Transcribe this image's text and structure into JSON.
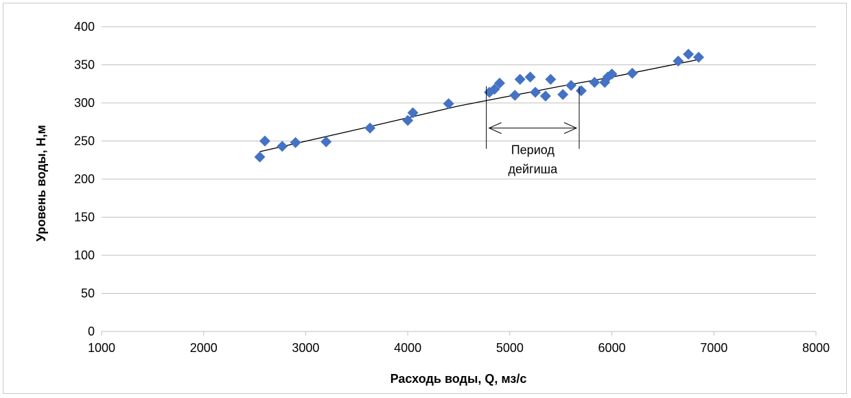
{
  "chart_data": {
    "type": "scatter",
    "title": "",
    "xlabel": "Расходь воды, Q, мз/с",
    "ylabel": "Уровень воды, Н,м",
    "xlim": [
      1000,
      8000
    ],
    "ylim": [
      0,
      400
    ],
    "x_ticks": [
      1000,
      2000,
      3000,
      4000,
      5000,
      6000,
      7000,
      8000
    ],
    "y_ticks": [
      0,
      50,
      100,
      150,
      200,
      250,
      300,
      350,
      400
    ],
    "grid": "horizontal",
    "legend": "none",
    "marker": "diamond",
    "colors": {
      "points": "#4472C4",
      "trendline": "#000000",
      "grid": "#bfbfbf"
    },
    "series": [
      {
        "points": [
          [
            2550,
            229
          ],
          [
            2600,
            250
          ],
          [
            2770,
            243
          ],
          [
            2900,
            248
          ],
          [
            3200,
            249
          ],
          [
            3630,
            267
          ],
          [
            4000,
            277
          ],
          [
            4050,
            287
          ],
          [
            4400,
            299
          ],
          [
            4800,
            314
          ],
          [
            4850,
            318
          ],
          [
            4900,
            326
          ],
          [
            5050,
            310
          ],
          [
            5100,
            331
          ],
          [
            5200,
            334
          ],
          [
            5250,
            314
          ],
          [
            5350,
            309
          ],
          [
            5400,
            331
          ],
          [
            5520,
            311
          ],
          [
            5600,
            323
          ],
          [
            5700,
            316
          ],
          [
            5830,
            327
          ],
          [
            5930,
            327
          ],
          [
            5960,
            334
          ],
          [
            6000,
            338
          ],
          [
            6200,
            339
          ],
          [
            6650,
            355
          ],
          [
            6750,
            364
          ],
          [
            6850,
            360
          ]
        ]
      }
    ],
    "trendline": [
      [
        2550,
        236
      ],
      [
        3500,
        265
      ],
      [
        4500,
        296
      ],
      [
        5500,
        322
      ],
      [
        6000,
        334
      ],
      [
        6850,
        357
      ]
    ],
    "annotations": [
      {
        "text_lines": [
          "Период",
          "дейгиша"
        ],
        "x_range": [
          4770,
          5680
        ],
        "arrow_y": 267,
        "line_top": 322,
        "line_bottom": 265
      }
    ]
  }
}
